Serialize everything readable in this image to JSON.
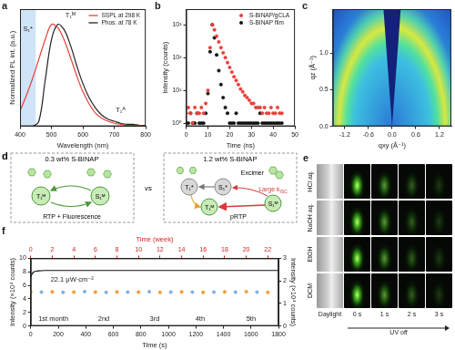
{
  "chart_data": [
    {
      "panel": "a",
      "type": "line",
      "x_label": "Wavelength (nm)",
      "y_label": "Normalized PL int. (a.u.)",
      "x": [
        400,
        420,
        440,
        460,
        480,
        500,
        520,
        540,
        560,
        580,
        600,
        620,
        640,
        660,
        680,
        700,
        720,
        740,
        760,
        780,
        800
      ],
      "xlim": [
        400,
        800
      ],
      "xticks": [
        400,
        500,
        600,
        700,
        800
      ],
      "ylim": [
        0,
        1.15
      ],
      "tick_labels": "x",
      "legend": "upper right",
      "shade_x": [
        400,
        450
      ],
      "series": [
        {
          "name": "SSPL at 298 K",
          "color": "#e8403a",
          "values": [
            0.15,
            0.3,
            0.47,
            0.66,
            0.85,
            1.0,
            0.97,
            0.85,
            0.68,
            0.5,
            0.34,
            0.22,
            0.13,
            0.08,
            0.05,
            0.03,
            0.02,
            0.01,
            0.01,
            0.01,
            0.0
          ]
        },
        {
          "name": "Phos. at 78 K",
          "color": "#222222",
          "values": [
            0,
            0,
            0,
            0.05,
            0.45,
            0.85,
            1.0,
            0.95,
            0.8,
            0.6,
            0.42,
            0.28,
            0.18,
            0.11,
            0.07,
            0.05,
            0.03,
            0.02,
            0.02,
            0.01,
            0.01
          ]
        }
      ],
      "annotations": [
        {
          "text": "S₁*",
          "x": 425,
          "y": 0.95
        },
        {
          "text": "T₁ᴹ",
          "x": 560,
          "y": 1.09
        },
        {
          "text": "T₁ᴬ",
          "x": 720,
          "y": 0.16
        }
      ]
    },
    {
      "panel": "b",
      "type": "scatter",
      "marker": "circle",
      "log": "y",
      "x_label": "Time (ns)",
      "y_label": "Intensity (counts)",
      "x": [
        0,
        1,
        2,
        3,
        4,
        5,
        6,
        7,
        8,
        9,
        10,
        11,
        12,
        13,
        14,
        15,
        16,
        17,
        18,
        19,
        20,
        21,
        22,
        23,
        24,
        25,
        26,
        27,
        28,
        29,
        30,
        31,
        32,
        33,
        34,
        35,
        36,
        37,
        38,
        39,
        40,
        41,
        42,
        43,
        44
      ],
      "xlim": [
        0,
        50
      ],
      "xticks": [
        0,
        10,
        20,
        30,
        40,
        50
      ],
      "ylim": [
        0.8,
        3000
      ],
      "yticks": [
        {
          "value": 1,
          "label": "10⁰"
        },
        {
          "value": 10,
          "label": "10¹"
        },
        {
          "value": 100,
          "label": "10²"
        },
        {
          "value": 1000,
          "label": "10³"
        }
      ],
      "legend": "upper right",
      "series": [
        {
          "name": "S-BINAP/gCLA",
          "color": "#e8403a",
          "values": [
            2,
            3,
            2,
            1,
            3,
            2,
            2,
            3,
            2,
            4,
            10,
            200,
            1000,
            700,
            450,
            300,
            200,
            140,
            100,
            70,
            50,
            36,
            26,
            20,
            15,
            11,
            9,
            7,
            6,
            5,
            4,
            4,
            3,
            3,
            3,
            2,
            3,
            2,
            2,
            3,
            2,
            2,
            3,
            2,
            2
          ]
        },
        {
          "name": "S-BINAP film",
          "color": "#111111",
          "values": [
            1,
            1,
            2,
            1,
            1,
            2,
            1,
            1,
            1,
            2,
            8,
            150,
            1000,
            400,
            120,
            40,
            15,
            6,
            3,
            2,
            1,
            1,
            1,
            2,
            1,
            1,
            1,
            1,
            1,
            1,
            1,
            1,
            1,
            1,
            2,
            1,
            1,
            1,
            1,
            1,
            1,
            1,
            1,
            1,
            1
          ]
        }
      ]
    },
    {
      "panel": "c",
      "type": "scattering_pattern",
      "x_label": "qxy (Å⁻¹)",
      "y_label": "qz (Å⁻¹)",
      "xlim": [
        -1.5,
        1.5
      ],
      "xticks": [
        -1.2,
        -0.6,
        {
          "value": 0,
          "label": "0.0"
        },
        0.6,
        1.2
      ],
      "ylim": [
        0,
        1.6
      ],
      "yticks": [
        {
          "value": 0,
          "label": "0.0"
        },
        0.5,
        {
          "value": 1,
          "label": "1.0"
        }
      ],
      "ring_q": 1.35,
      "ring_width": 0.4
    },
    {
      "panel": "f",
      "type": "line",
      "x_label": "Time (s)",
      "x2_label": "Time (week)",
      "y_label": "Intensity (×10⁴ counts)",
      "y2_label": "Intensity (×10⁴ counts)",
      "xlim": [
        0,
        1800
      ],
      "xticks": [
        0,
        200,
        400,
        600,
        800,
        1000,
        1200,
        1400,
        1600,
        1800
      ],
      "x2lim": [
        0,
        23
      ],
      "x2ticks": [
        0,
        2,
        4,
        6,
        8,
        10,
        12,
        14,
        16,
        18,
        20,
        22
      ],
      "ylim": [
        0,
        10
      ],
      "yticks": [
        0,
        2,
        4,
        6,
        8,
        10
      ],
      "y2lim": [
        0,
        3
      ],
      "y2ticks": [
        0,
        1,
        2,
        3
      ],
      "series": [
        {
          "type": "line",
          "color": "#111111",
          "x": [
            0,
            10,
            20,
            40,
            60,
            100,
            150,
            200,
            300,
            400,
            500,
            600,
            700,
            800,
            900,
            1000,
            1100,
            1200,
            1300,
            1400,
            1500,
            1600,
            1700,
            1800
          ],
          "values": [
            7.2,
            7.7,
            7.95,
            8.1,
            8.15,
            8.2,
            8.2,
            8.2,
            8.2,
            8.2,
            8.2,
            8.2,
            8.2,
            8.2,
            8.2,
            8.2,
            8.2,
            8.2,
            8.2,
            8.2,
            8.2,
            8.2,
            8.2,
            8.2
          ]
        },
        {
          "type": "scatter",
          "marker": "circle",
          "axis": "y2",
          "x": [
            0,
            1,
            2,
            3,
            4,
            5,
            6,
            7,
            8,
            9,
            10,
            11,
            12,
            13,
            14,
            15,
            16,
            17,
            18,
            19,
            20,
            21,
            22
          ],
          "values": [
            1.52,
            1.5,
            1.51,
            1.49,
            1.5,
            1.52,
            1.5,
            1.49,
            1.51,
            1.5,
            1.5,
            1.52,
            1.49,
            1.5,
            1.51,
            1.5,
            1.49,
            1.5,
            1.51,
            1.5,
            1.52,
            1.5,
            1.49
          ],
          "colors": [
            "#f29b38",
            "#7db0e0",
            "#f29b38",
            "#7db0e0",
            "#f29b38",
            "#7db0e0",
            "#f29b38",
            "#7db0e0",
            "#f29b38",
            "#7db0e0",
            "#f29b38",
            "#7db0e0",
            "#f29b38",
            "#7db0e0",
            "#f29b38",
            "#7db0e0",
            "#f29b38",
            "#7db0e0",
            "#f29b38",
            "#7db0e0",
            "#f29b38",
            "#7db0e0",
            "#f29b38"
          ]
        }
      ],
      "annotations": [
        {
          "text": "22.1 μW·cm⁻²",
          "x": 300,
          "y": 6.8
        },
        {
          "text": "1st month",
          "x": 164,
          "y": 1.0
        },
        {
          "text": "2nd",
          "x": 530,
          "y": 1.0
        },
        {
          "text": "3rd",
          "x": 900,
          "y": 1.0
        },
        {
          "text": "4th",
          "x": 1230,
          "y": 1.0
        },
        {
          "text": "5th",
          "x": 1600,
          "y": 1.0
        }
      ]
    }
  ],
  "diagram_d": {
    "panel": "d",
    "left": {
      "title": "0.3 wt% S-BINAP",
      "states": [
        "T₁ᴹ",
        "S₁ᴹ"
      ],
      "caption": "RTP + Fluorescence"
    },
    "vs": "vs",
    "right": {
      "title": "1.2 wt% S-BINAP",
      "excimer": "Excimer",
      "states": [
        "T₁*",
        "S₁*",
        "T₁ᴹ",
        "S₁ᴹ"
      ],
      "kisc": "Large k",
      "kisc_sub": "ISC",
      "caption": "pRTP"
    }
  },
  "photos_e": {
    "panel": "e",
    "rows": [
      "HCl aq.",
      "NaOH aq.",
      "EtOH",
      "DCM"
    ],
    "columns": [
      "Daylight",
      "0 s",
      "1 s",
      "2 s",
      "3 s"
    ],
    "uv_off": "UV off"
  }
}
